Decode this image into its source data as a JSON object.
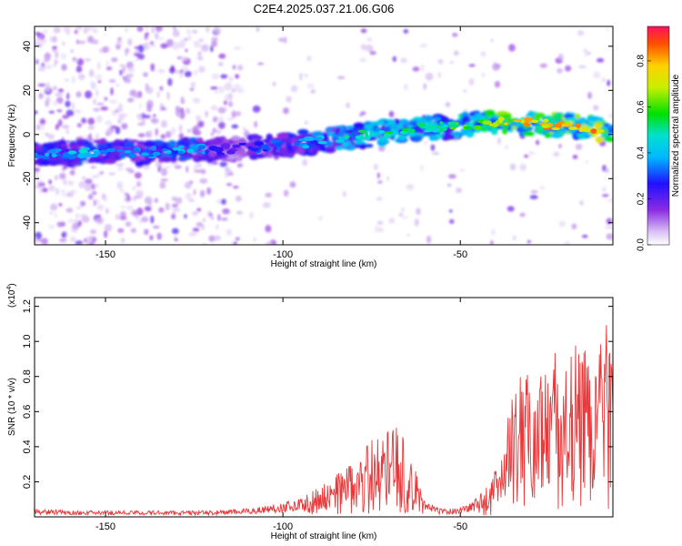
{
  "chart_data": [
    {
      "type": "heatmap",
      "title": "C2E4.2025.037.21.06.G06",
      "xlabel": "Height of straight line (km)",
      "ylabel": "Frequency (Hz)",
      "xlim": [
        -170,
        -7
      ],
      "ylim": [
        -50,
        49
      ],
      "x_ticks": [
        -150,
        -100,
        -50
      ],
      "x_tick_labels": [
        "-150",
        "-100",
        "-50"
      ],
      "y_ticks": [
        40,
        20,
        0,
        -20,
        -40
      ],
      "y_tick_labels": [
        "40",
        "20",
        "0",
        "-20",
        "-40"
      ],
      "colorbar": {
        "label": "Normalized spectral amplitude",
        "range": [
          0,
          0.95
        ],
        "ticks": [
          0.0,
          0.2,
          0.4,
          0.6,
          0.8
        ],
        "tick_labels": [
          "0.0",
          "0.2",
          "0.4",
          "0.6",
          "0.8"
        ],
        "colormap": "rainbow"
      },
      "ridge": {
        "x": [
          -170,
          -155,
          -140,
          -125,
          -115,
          -110,
          -100,
          -90,
          -80,
          -70,
          -60,
          -50,
          -40,
          -30,
          -20,
          -10,
          -7
        ],
        "y": [
          -9,
          -8,
          -8,
          -7,
          -7,
          -6,
          -5,
          -3,
          -1,
          1,
          3,
          4,
          6,
          5,
          4,
          2,
          1
        ],
        "amplitude": [
          0.35,
          0.45,
          0.35,
          0.45,
          0.2,
          0.3,
          0.35,
          0.45,
          0.5,
          0.55,
          0.55,
          0.6,
          0.8,
          0.85,
          0.8,
          0.9,
          0.6
        ]
      },
      "grid": false
    },
    {
      "type": "line",
      "xlabel": "Height of straight line (km)",
      "ylabel": "SNR (10 * v/v)",
      "y_multiplier_label": "(x10",
      "y_multiplier_exp": "4",
      "y_multiplier_close": ")",
      "xlim": [
        -170,
        -7
      ],
      "ylim": [
        0,
        1.25
      ],
      "x_ticks": [
        -150,
        -100,
        -50
      ],
      "x_tick_labels": [
        "-150",
        "-100",
        "-50"
      ],
      "y_ticks": [
        0.2,
        0.4,
        0.6,
        0.8,
        1.0,
        1.2
      ],
      "y_tick_labels": [
        "0.2",
        "0.4",
        "0.6",
        "0.8",
        "1.0",
        "1.2"
      ],
      "line_color": "#e8383a",
      "series": [
        {
          "x": [
            -170,
            -160,
            -150,
            -140,
            -130,
            -120,
            -110,
            -100,
            -95,
            -90,
            -85,
            -80,
            -77,
            -74,
            -71,
            -68,
            -65,
            -62,
            -60,
            -57,
            -55,
            -52,
            -50,
            -47,
            -44,
            -41,
            -38,
            -35,
            -32,
            -29,
            -26,
            -23,
            -20,
            -17,
            -14,
            -11,
            -9,
            -7
          ],
          "values": [
            0.04,
            0.03,
            0.03,
            0.03,
            0.03,
            0.03,
            0.04,
            0.07,
            0.09,
            0.14,
            0.2,
            0.28,
            0.33,
            0.38,
            0.42,
            0.44,
            0.35,
            0.2,
            0.08,
            0.05,
            0.04,
            0.04,
            0.05,
            0.07,
            0.12,
            0.18,
            0.35,
            0.6,
            0.7,
            0.62,
            0.75,
            0.8,
            0.72,
            0.85,
            0.8,
            0.88,
            1.0,
            0.7
          ]
        }
      ],
      "grid": false
    }
  ]
}
